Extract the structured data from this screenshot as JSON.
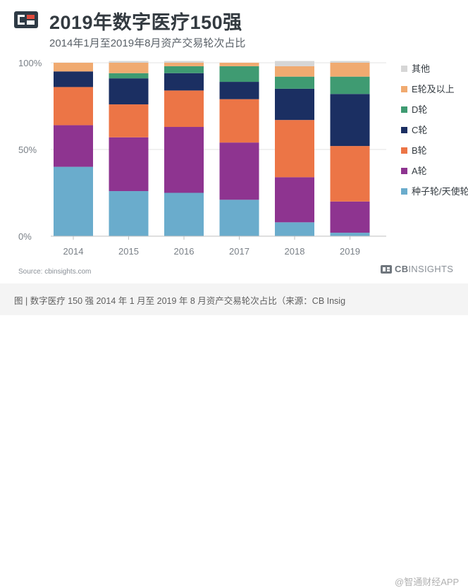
{
  "header": {
    "title": "2019年数字医疗150强",
    "subtitle": "2014年1月至2019年8月资产交易轮次占比"
  },
  "footer": {
    "source": "Source: cbinsights.com",
    "brand_cb": "CB",
    "brand_insights": "INSIGHTS"
  },
  "caption": {
    "text": "图 | 数字医疗 150 强 2014 年 1 月至 2019 年 8 月资产交易轮次占比（来源：CB Insig",
    "watermark": "@智通财经APP"
  },
  "chart_data": {
    "type": "bar",
    "stacked": true,
    "title": "2019年数字医疗150强",
    "subtitle": "2014年1月至2019年8月资产交易轮次占比",
    "categories": [
      "2014",
      "2015",
      "2016",
      "2017",
      "2018",
      "2019"
    ],
    "ylim": [
      0,
      100
    ],
    "yticks": [
      0,
      50,
      100
    ],
    "ytick_labels": [
      "0%",
      "50%",
      "100%"
    ],
    "grid": true,
    "legend_position": "right",
    "series": [
      {
        "name": "种子轮/天使轮v",
        "color": "#6aaccc",
        "values": [
          40,
          26,
          25,
          21,
          8,
          2
        ]
      },
      {
        "name": "A轮",
        "color": "#8e3490",
        "values": [
          24,
          31,
          38,
          33,
          26,
          18
        ]
      },
      {
        "name": "B轮",
        "color": "#ec7546",
        "values": [
          22,
          19,
          21,
          25,
          33,
          32
        ]
      },
      {
        "name": "C轮",
        "color": "#1b2f62",
        "values": [
          9,
          15,
          10,
          10,
          18,
          30
        ]
      },
      {
        "name": "D轮",
        "color": "#3f9b72",
        "values": [
          0,
          3,
          4,
          9,
          7,
          10
        ]
      },
      {
        "name": "E轮及以上",
        "color": "#f0aa70",
        "values": [
          5,
          6,
          2,
          2,
          6,
          8
        ]
      },
      {
        "name": "其他",
        "color": "#d6d6d6",
        "values": [
          0,
          1,
          1,
          0,
          3,
          1
        ]
      }
    ]
  },
  "colors": {
    "logo_dark": "#2e3a45",
    "logo_accent": "#e04a3c"
  }
}
